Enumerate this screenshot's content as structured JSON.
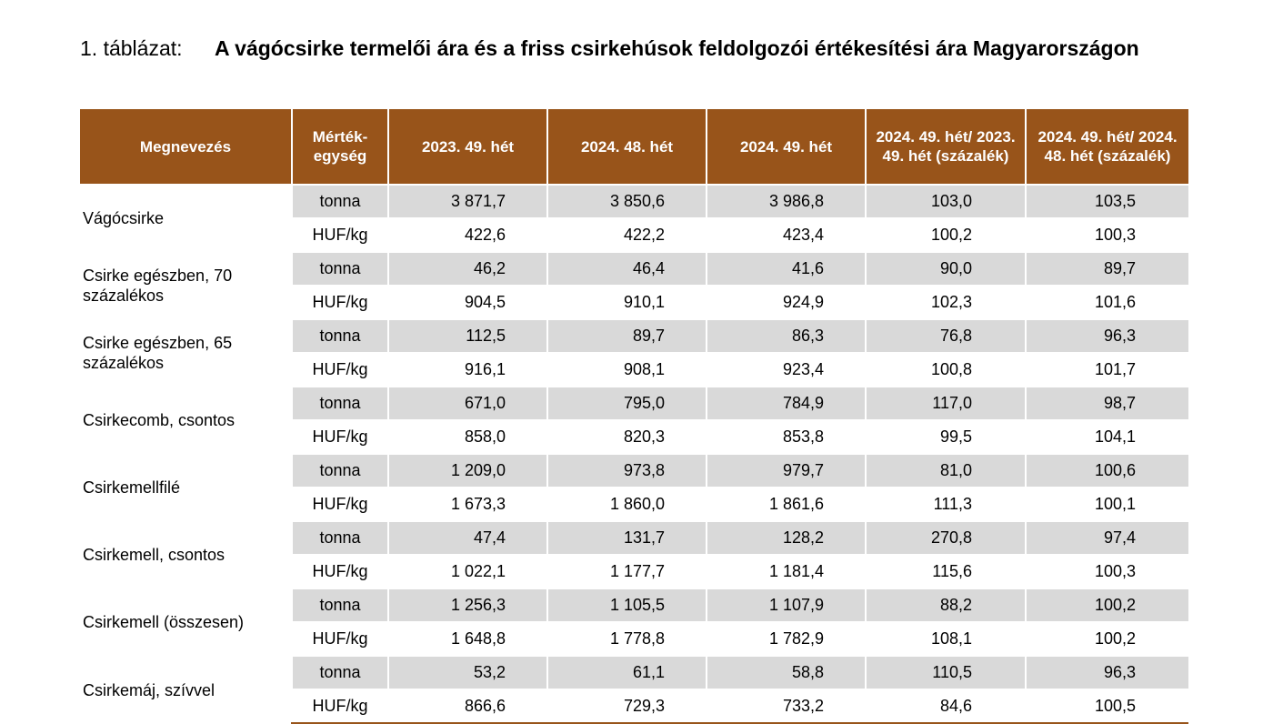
{
  "caption": {
    "label": "1. táblázat:",
    "title": "A vágócsirke termelői ára és a friss csirkehúsok feldolgozói értékesítési ára Magyarországon"
  },
  "headers": {
    "name": "Megnevezés",
    "unit": "Mérték-egység",
    "c1": "2023. 49. hét",
    "c2": "2024. 48. hét",
    "c3": "2024. 49. hét",
    "c4": "2024. 49. hét/ 2023. 49. hét (százalék)",
    "c5": "2024. 49. hét/ 2024. 48. hét (százalék)"
  },
  "rows": [
    {
      "name": "Vágócsirke",
      "a": [
        "tonna",
        "3 871,7",
        "3 850,6",
        "3 986,8",
        "103,0",
        "103,5"
      ],
      "b": [
        "HUF/kg",
        "422,6",
        "422,2",
        "423,4",
        "100,2",
        "100,3"
      ]
    },
    {
      "name": "Csirke egészben, 70 százalékos",
      "a": [
        "tonna",
        "46,2",
        "46,4",
        "41,6",
        "90,0",
        "89,7"
      ],
      "b": [
        "HUF/kg",
        "904,5",
        "910,1",
        "924,9",
        "102,3",
        "101,6"
      ]
    },
    {
      "name": "Csirke egészben, 65 százalékos",
      "a": [
        "tonna",
        "112,5",
        "89,7",
        "86,3",
        "76,8",
        "96,3"
      ],
      "b": [
        "HUF/kg",
        "916,1",
        "908,1",
        "923,4",
        "100,8",
        "101,7"
      ]
    },
    {
      "name": "Csirkecomb, csontos",
      "a": [
        "tonna",
        "671,0",
        "795,0",
        "784,9",
        "117,0",
        "98,7"
      ],
      "b": [
        "HUF/kg",
        "858,0",
        "820,3",
        "853,8",
        "99,5",
        "104,1"
      ]
    },
    {
      "name": "Csirkemellfilé",
      "a": [
        "tonna",
        "1 209,0",
        "973,8",
        "979,7",
        "81,0",
        "100,6"
      ],
      "b": [
        "HUF/kg",
        "1 673,3",
        "1 860,0",
        "1 861,6",
        "111,3",
        "100,1"
      ]
    },
    {
      "name": "Csirkemell, csontos",
      "a": [
        "tonna",
        "47,4",
        "131,7",
        "128,2",
        "270,8",
        "97,4"
      ],
      "b": [
        "HUF/kg",
        "1 022,1",
        "1 177,7",
        "1 181,4",
        "115,6",
        "100,3"
      ]
    },
    {
      "name": "Csirkemell (összesen)",
      "a": [
        "tonna",
        "1 256,3",
        "1 105,5",
        "1 107,9",
        "88,2",
        "100,2"
      ],
      "b": [
        "HUF/kg",
        "1 648,8",
        "1 778,8",
        "1 782,9",
        "108,1",
        "100,2"
      ]
    },
    {
      "name": "Csirkemáj, szívvel",
      "a": [
        "tonna",
        "53,2",
        "61,1",
        "58,8",
        "110,5",
        "96,3"
      ],
      "b": [
        "HUF/kg",
        "866,6",
        "729,3",
        "733,2",
        "84,6",
        "100,5"
      ]
    }
  ]
}
